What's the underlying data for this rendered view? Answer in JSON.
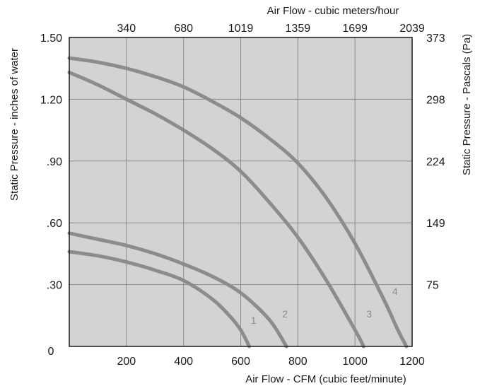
{
  "chart_data": {
    "type": "line",
    "xlabel": "Air Flow - CFM (cubic feet/minute)",
    "x2label": "Air Flow - cubic meters/hour",
    "ylabel": "Static Pressure - inches of water",
    "y2label": "Static Pressure - Pascals (Pa)",
    "xlim": [
      0,
      1200
    ],
    "ylim": [
      0,
      1.5
    ],
    "x_ticks": [
      200,
      400,
      600,
      800,
      1000,
      1200
    ],
    "x_tick_labels": [
      "200",
      "400",
      "600",
      "800",
      "1000",
      "1200"
    ],
    "x_origin_label": "0",
    "y_ticks": [
      0.3,
      0.6,
      0.9,
      1.2,
      1.5
    ],
    "y_tick_labels": [
      ".30",
      ".60",
      ".90",
      "1.20",
      "1.50"
    ],
    "x2_ticks": [
      200,
      400,
      600,
      800,
      1000,
      1200
    ],
    "x2_tick_labels": [
      "340",
      "680",
      "1019",
      "1359",
      "1699",
      "2039"
    ],
    "y2_ticks": [
      0.3,
      0.6,
      0.9,
      1.2,
      1.5
    ],
    "y2_tick_labels": [
      "75",
      "149",
      "224",
      "298",
      "373"
    ],
    "grid": true,
    "colors": {
      "plot_bg": "#d3d3d3",
      "curve": "#8c8c8c",
      "grid": "#8a8a8a",
      "frame": "#1a1a1a",
      "curve_label": "#8a8a8a"
    },
    "series": [
      {
        "name": "1",
        "points": [
          [
            0,
            0.46
          ],
          [
            100,
            0.44
          ],
          [
            200,
            0.41
          ],
          [
            300,
            0.37
          ],
          [
            400,
            0.32
          ],
          [
            500,
            0.23
          ],
          [
            560,
            0.15
          ],
          [
            600,
            0.08
          ],
          [
            630,
            0.0
          ]
        ]
      },
      {
        "name": "2",
        "points": [
          [
            0,
            0.55
          ],
          [
            100,
            0.52
          ],
          [
            200,
            0.49
          ],
          [
            300,
            0.45
          ],
          [
            400,
            0.4
          ],
          [
            500,
            0.34
          ],
          [
            600,
            0.26
          ],
          [
            700,
            0.13
          ],
          [
            760,
            0.0
          ]
        ]
      },
      {
        "name": "3",
        "points": [
          [
            0,
            1.33
          ],
          [
            100,
            1.27
          ],
          [
            200,
            1.2
          ],
          [
            300,
            1.13
          ],
          [
            400,
            1.05
          ],
          [
            500,
            0.96
          ],
          [
            600,
            0.85
          ],
          [
            700,
            0.7
          ],
          [
            800,
            0.53
          ],
          [
            900,
            0.32
          ],
          [
            1000,
            0.08
          ],
          [
            1030,
            0.0
          ]
        ]
      },
      {
        "name": "4",
        "points": [
          [
            0,
            1.4
          ],
          [
            100,
            1.38
          ],
          [
            200,
            1.35
          ],
          [
            300,
            1.31
          ],
          [
            400,
            1.26
          ],
          [
            500,
            1.19
          ],
          [
            600,
            1.11
          ],
          [
            700,
            1.01
          ],
          [
            800,
            0.89
          ],
          [
            900,
            0.72
          ],
          [
            1000,
            0.5
          ],
          [
            1100,
            0.23
          ],
          [
            1150,
            0.08
          ],
          [
            1180,
            0.0
          ]
        ]
      }
    ],
    "curve_labels": [
      {
        "text": "1",
        "x": 645,
        "y": 0.11
      },
      {
        "text": "2",
        "x": 755,
        "y": 0.14
      },
      {
        "text": "3",
        "x": 1050,
        "y": 0.14
      },
      {
        "text": "4",
        "x": 1140,
        "y": 0.25
      }
    ]
  }
}
